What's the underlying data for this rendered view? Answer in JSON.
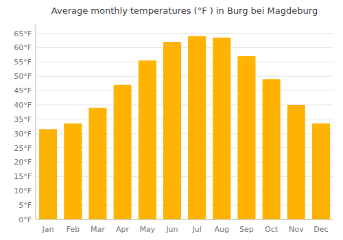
{
  "chart_data": {
    "type": "bar",
    "title": "Average monthly temperatures (°F ) in Burg bei Magdeburg",
    "categories": [
      "Jan",
      "Feb",
      "Mar",
      "Apr",
      "May",
      "Jun",
      "Jul",
      "Aug",
      "Sep",
      "Oct",
      "Nov",
      "Dec"
    ],
    "values": [
      31.5,
      33.5,
      39.0,
      47.0,
      55.5,
      62.0,
      64.0,
      63.5,
      57.0,
      49.0,
      40.0,
      33.5
    ],
    "color": "#FFB300",
    "ylim": [
      0,
      68
    ],
    "yticks": [
      {
        "value": 0,
        "label": "0°F"
      },
      {
        "value": 5,
        "label": "5°F"
      },
      {
        "value": 10,
        "label": "10°F"
      },
      {
        "value": 15,
        "label": "15°F"
      },
      {
        "value": 20,
        "label": "20°F"
      },
      {
        "value": 25,
        "label": "25°F"
      },
      {
        "value": 30,
        "label": "30°F"
      },
      {
        "value": 35,
        "label": "35°F"
      },
      {
        "value": 40,
        "label": "40°F"
      },
      {
        "value": 45,
        "label": "45°F"
      },
      {
        "value": 50,
        "label": "50°F"
      },
      {
        "value": 55,
        "label": "55°F"
      },
      {
        "value": 60,
        "label": "60°F"
      },
      {
        "value": 65,
        "label": "65°F"
      }
    ],
    "grid": true
  }
}
